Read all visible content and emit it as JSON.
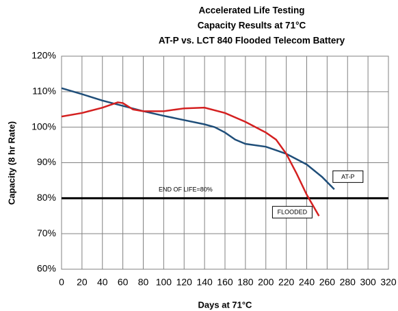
{
  "chart_data": {
    "type": "line",
    "title": [
      "Accelerated Life Testing",
      "Capacity Results at 71°C",
      "AT-P vs. LCT 840 Flooded Telecom Battery"
    ],
    "x_label": "Days at 71°C",
    "y_label": "Capacity (8 hr Rate)",
    "xlim": [
      0,
      320
    ],
    "xticks": [
      0,
      20,
      40,
      60,
      80,
      100,
      120,
      140,
      160,
      180,
      200,
      220,
      240,
      260,
      280,
      300,
      320
    ],
    "ylim": [
      60,
      120
    ],
    "yticks": [
      {
        "value": 60,
        "label": "60%"
      },
      {
        "value": 70,
        "label": "70%"
      },
      {
        "value": 80,
        "label": "80%"
      },
      {
        "value": 90,
        "label": "90%"
      },
      {
        "value": 100,
        "label": "100%"
      },
      {
        "value": 110,
        "label": "110%"
      },
      {
        "value": 120,
        "label": "120%"
      }
    ],
    "grid": true,
    "annotation": {
      "text": "END OF LIFE=80%",
      "value": 80,
      "color": "#000000"
    },
    "series": [
      {
        "name": "AT-P",
        "color": "#1f4e79",
        "x": [
          0,
          20,
          40,
          60,
          80,
          100,
          120,
          140,
          150,
          160,
          170,
          180,
          200,
          210,
          220,
          240,
          255,
          267
        ],
        "values": [
          111,
          109.3,
          107.5,
          106,
          104.5,
          103.2,
          102,
          100.8,
          100,
          98.5,
          96.5,
          95.3,
          94.5,
          93.5,
          92.5,
          89.5,
          86,
          82.5
        ]
      },
      {
        "name": "FLOODED",
        "color": "#d42020",
        "x": [
          0,
          20,
          40,
          55,
          60,
          70,
          80,
          100,
          120,
          140,
          160,
          180,
          200,
          210,
          220,
          230,
          240,
          252
        ],
        "values": [
          103,
          104,
          105.5,
          107,
          106.8,
          105,
          104.5,
          104.5,
          105.3,
          105.5,
          104,
          101.5,
          98.5,
          96.5,
          92.5,
          87,
          81,
          75
        ]
      }
    ]
  }
}
